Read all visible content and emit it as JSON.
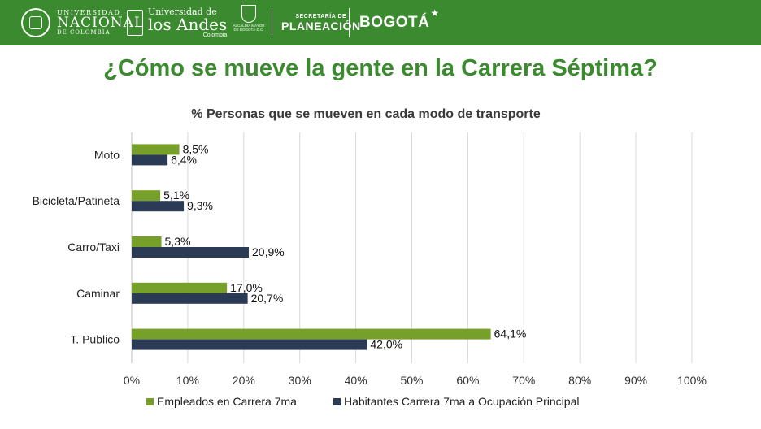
{
  "header": {
    "logos": {
      "unal": {
        "line1": "UNIVERSIDAD",
        "line2": "NACIONAL",
        "line3": "DE COLOMBIA"
      },
      "andes": {
        "line1": "Universidad de",
        "line2": "los Andes",
        "line3": "Colombia"
      },
      "alcaldia": {
        "text": "ALCALDÍA MAYOR DE BOGOTÁ D.C."
      },
      "sdp": {
        "line1": "SECRETARÍA DE",
        "line2": "PLANEACIÓN"
      },
      "bogota": {
        "text": "BOGOTÁ"
      }
    },
    "colors": {
      "bar_bg": "#3b8a2f",
      "title": "#3b8a2f"
    }
  },
  "page_title": "¿Cómo se mueve la gente en la Carrera Séptima?",
  "chart_data": {
    "type": "bar",
    "orientation": "horizontal",
    "title": "% Personas que se mueven en cada modo de transporte",
    "categories": [
      "Moto",
      "Bicicleta/Patineta",
      "Carro/Taxi",
      "Caminar",
      "T. Publico"
    ],
    "series": [
      {
        "name": "Empleados en Carrera 7ma",
        "color": "#77a02a",
        "values": [
          8.5,
          5.1,
          5.3,
          17.0,
          64.1
        ],
        "labels": [
          "8,5%",
          "5,1%",
          "5,3%",
          "17,0%",
          "64,1%"
        ]
      },
      {
        "name": "Habitantes Carrera 7ma a Ocupación Principal",
        "color": "#2b3a55",
        "values": [
          6.4,
          9.3,
          20.9,
          20.7,
          42.0
        ],
        "labels": [
          "6,4%",
          "9,3%",
          "20,9%",
          "20,7%",
          "42,0%"
        ]
      }
    ],
    "xlim": [
      0,
      100
    ],
    "xticks": [
      "0%",
      "10%",
      "20%",
      "30%",
      "40%",
      "50%",
      "60%",
      "70%",
      "80%",
      "90%",
      "100%"
    ],
    "grid": true,
    "legend": "bottom"
  }
}
